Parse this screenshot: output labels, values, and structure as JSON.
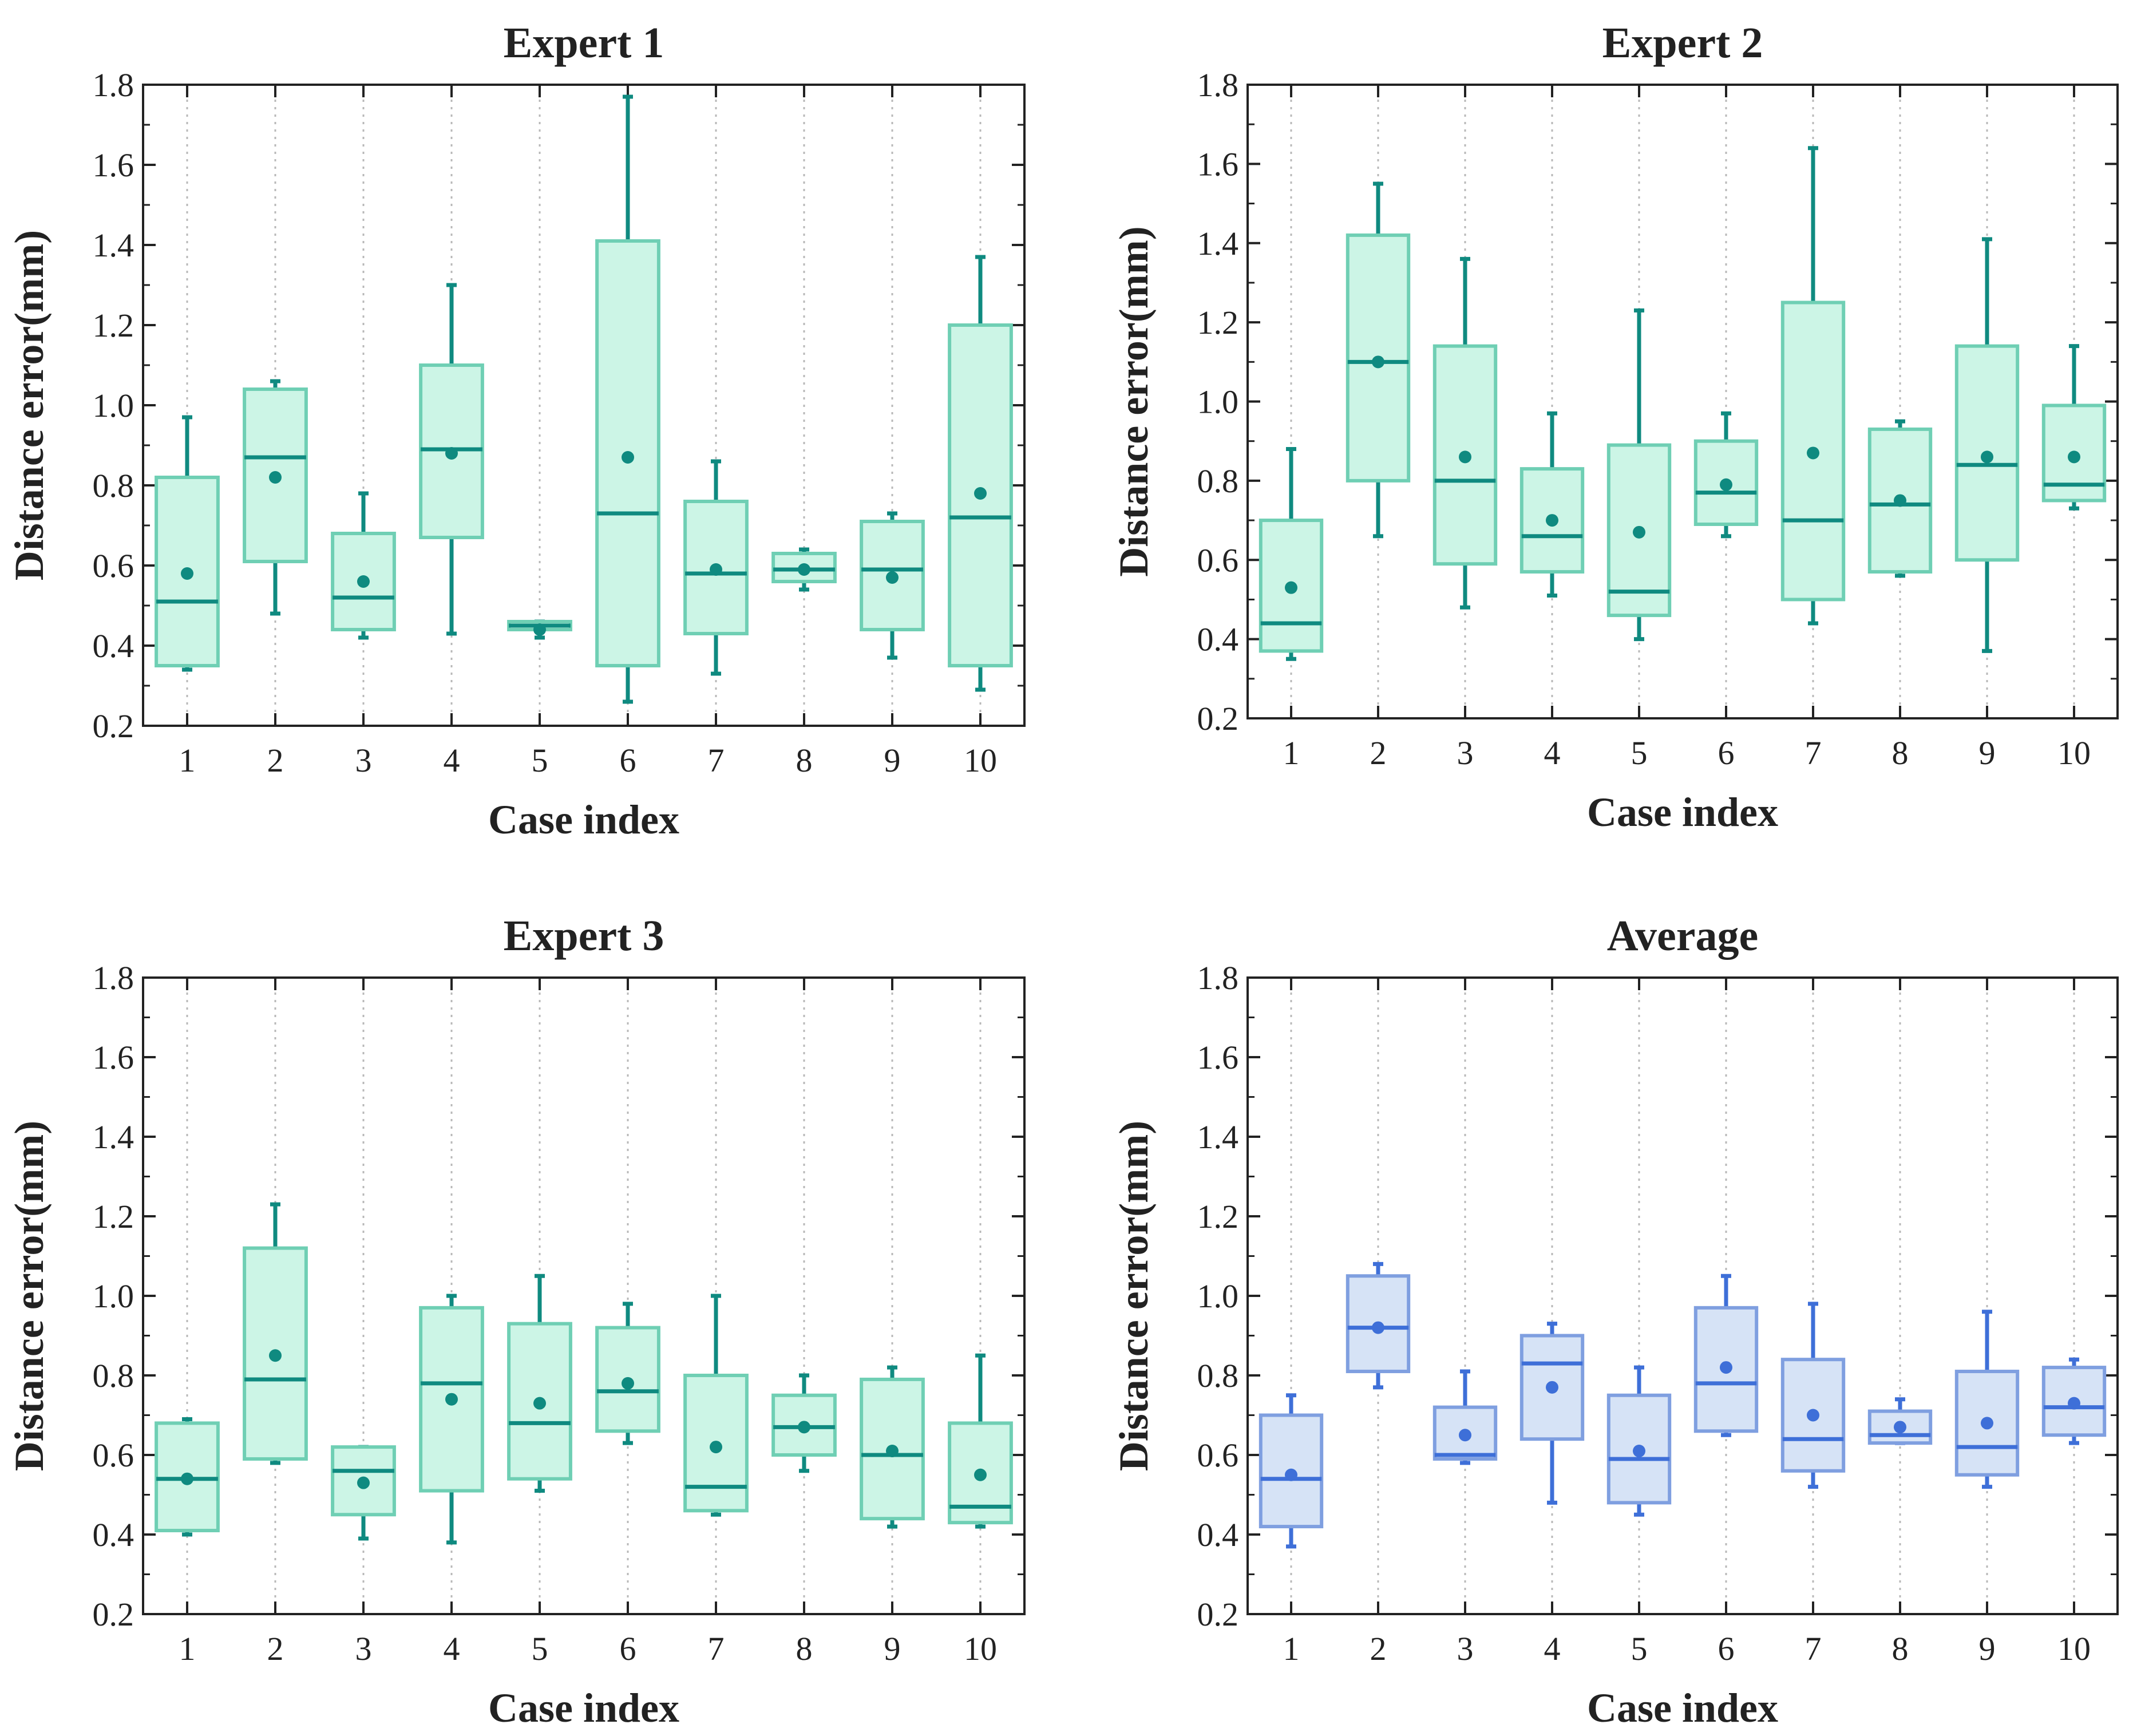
{
  "colors": {
    "teal_stroke": "#0f8a80",
    "teal_fill": "#ccf5e6",
    "teal_box_edge": "#6fcfb4",
    "blue_stroke": "#3e6fd8",
    "blue_fill": "#d6e3f6",
    "blue_box_edge": "#7f9fe0",
    "grid": "#b8b8b8",
    "axis": "#222222"
  },
  "chart_data": [
    {
      "type": "box",
      "title": "Expert 1",
      "xlabel": "Case index",
      "ylabel": "Distance error(mm)",
      "ylim": [
        0.2,
        1.8
      ],
      "yticks": [
        "0.2",
        "0.4",
        "0.6",
        "0.8",
        "1.0",
        "1.2",
        "1.4",
        "1.6",
        "1.8"
      ],
      "categories": [
        "1",
        "2",
        "3",
        "4",
        "5",
        "6",
        "7",
        "8",
        "9",
        "10"
      ],
      "grid": "vertical dotted",
      "palette": "teal",
      "boxes": [
        {
          "case": "1",
          "min": 0.34,
          "q1": 0.35,
          "median": 0.51,
          "mean": 0.58,
          "q3": 0.82,
          "max": 0.97
        },
        {
          "case": "2",
          "min": 0.48,
          "q1": 0.61,
          "median": 0.87,
          "mean": 0.82,
          "q3": 1.04,
          "max": 1.06
        },
        {
          "case": "3",
          "min": 0.42,
          "q1": 0.44,
          "median": 0.52,
          "mean": 0.56,
          "q3": 0.68,
          "max": 0.78
        },
        {
          "case": "4",
          "min": 0.43,
          "q1": 0.67,
          "median": 0.89,
          "mean": 0.88,
          "q3": 1.1,
          "max": 1.3
        },
        {
          "case": "5",
          "min": 0.42,
          "q1": 0.44,
          "median": 0.45,
          "mean": 0.44,
          "q3": 0.46,
          "max": 0.46
        },
        {
          "case": "6",
          "min": 0.26,
          "q1": 0.35,
          "median": 0.73,
          "mean": 0.87,
          "q3": 1.41,
          "max": 1.77
        },
        {
          "case": "7",
          "min": 0.33,
          "q1": 0.43,
          "median": 0.58,
          "mean": 0.59,
          "q3": 0.76,
          "max": 0.86
        },
        {
          "case": "8",
          "min": 0.54,
          "q1": 0.56,
          "median": 0.59,
          "mean": 0.59,
          "q3": 0.63,
          "max": 0.64
        },
        {
          "case": "9",
          "min": 0.37,
          "q1": 0.44,
          "median": 0.59,
          "mean": 0.57,
          "q3": 0.71,
          "max": 0.73
        },
        {
          "case": "10",
          "min": 0.29,
          "q1": 0.35,
          "median": 0.72,
          "mean": 0.78,
          "q3": 1.2,
          "max": 1.37
        }
      ]
    },
    {
      "type": "box",
      "title": "Expert 2",
      "xlabel": "Case index",
      "ylabel": "Distance error(mm)",
      "ylim": [
        0.2,
        1.8
      ],
      "yticks": [
        "0.2",
        "0.4",
        "0.6",
        "0.8",
        "1.0",
        "1.2",
        "1.4",
        "1.6",
        "1.8"
      ],
      "categories": [
        "1",
        "2",
        "3",
        "4",
        "5",
        "6",
        "7",
        "8",
        "9",
        "10"
      ],
      "grid": "vertical dotted",
      "palette": "teal",
      "boxes": [
        {
          "case": "1",
          "min": 0.35,
          "q1": 0.37,
          "median": 0.44,
          "mean": 0.53,
          "q3": 0.7,
          "max": 0.88
        },
        {
          "case": "2",
          "min": 0.66,
          "q1": 0.8,
          "median": 1.1,
          "mean": 1.1,
          "q3": 1.42,
          "max": 1.55
        },
        {
          "case": "3",
          "min": 0.48,
          "q1": 0.59,
          "median": 0.8,
          "mean": 0.86,
          "q3": 1.14,
          "max": 1.36
        },
        {
          "case": "4",
          "min": 0.51,
          "q1": 0.57,
          "median": 0.66,
          "mean": 0.7,
          "q3": 0.83,
          "max": 0.97
        },
        {
          "case": "5",
          "min": 0.4,
          "q1": 0.46,
          "median": 0.52,
          "mean": 0.67,
          "q3": 0.89,
          "max": 1.23
        },
        {
          "case": "6",
          "min": 0.66,
          "q1": 0.69,
          "median": 0.77,
          "mean": 0.79,
          "q3": 0.9,
          "max": 0.97
        },
        {
          "case": "7",
          "min": 0.44,
          "q1": 0.5,
          "median": 0.7,
          "mean": 0.87,
          "q3": 1.25,
          "max": 1.64
        },
        {
          "case": "8",
          "min": 0.56,
          "q1": 0.57,
          "median": 0.74,
          "mean": 0.75,
          "q3": 0.93,
          "max": 0.95
        },
        {
          "case": "9",
          "min": 0.37,
          "q1": 0.6,
          "median": 0.84,
          "mean": 0.86,
          "q3": 1.14,
          "max": 1.41
        },
        {
          "case": "10",
          "min": 0.73,
          "q1": 0.75,
          "median": 0.79,
          "mean": 0.86,
          "q3": 0.99,
          "max": 1.14
        }
      ]
    },
    {
      "type": "box",
      "title": "Expert 3",
      "xlabel": "Case index",
      "ylabel": "Distance error(mm)",
      "ylim": [
        0.2,
        1.8
      ],
      "yticks": [
        "0.2",
        "0.4",
        "0.6",
        "0.8",
        "1.0",
        "1.2",
        "1.4",
        "1.6",
        "1.8"
      ],
      "categories": [
        "1",
        "2",
        "3",
        "4",
        "5",
        "6",
        "7",
        "8",
        "9",
        "10"
      ],
      "grid": "vertical dotted",
      "palette": "teal",
      "boxes": [
        {
          "case": "1",
          "min": 0.4,
          "q1": 0.41,
          "median": 0.54,
          "mean": 0.54,
          "q3": 0.68,
          "max": 0.69
        },
        {
          "case": "2",
          "min": 0.58,
          "q1": 0.59,
          "median": 0.79,
          "mean": 0.85,
          "q3": 1.12,
          "max": 1.23
        },
        {
          "case": "3",
          "min": 0.39,
          "q1": 0.45,
          "median": 0.56,
          "mean": 0.53,
          "q3": 0.62,
          "max": 0.62
        },
        {
          "case": "4",
          "min": 0.38,
          "q1": 0.51,
          "median": 0.78,
          "mean": 0.74,
          "q3": 0.97,
          "max": 1.0
        },
        {
          "case": "5",
          "min": 0.51,
          "q1": 0.54,
          "median": 0.68,
          "mean": 0.73,
          "q3": 0.93,
          "max": 1.05
        },
        {
          "case": "6",
          "min": 0.63,
          "q1": 0.66,
          "median": 0.76,
          "mean": 0.78,
          "q3": 0.92,
          "max": 0.98
        },
        {
          "case": "7",
          "min": 0.45,
          "q1": 0.46,
          "median": 0.52,
          "mean": 0.62,
          "q3": 0.8,
          "max": 1.0
        },
        {
          "case": "8",
          "min": 0.56,
          "q1": 0.6,
          "median": 0.67,
          "mean": 0.67,
          "q3": 0.75,
          "max": 0.8
        },
        {
          "case": "9",
          "min": 0.42,
          "q1": 0.44,
          "median": 0.6,
          "mean": 0.61,
          "q3": 0.79,
          "max": 0.82
        },
        {
          "case": "10",
          "min": 0.42,
          "q1": 0.43,
          "median": 0.47,
          "mean": 0.55,
          "q3": 0.68,
          "max": 0.85
        }
      ]
    },
    {
      "type": "box",
      "title": "Average",
      "xlabel": "Case index",
      "ylabel": "Distance error(mm)",
      "ylim": [
        0.2,
        1.8
      ],
      "yticks": [
        "0.2",
        "0.4",
        "0.6",
        "0.8",
        "1.0",
        "1.2",
        "1.4",
        "1.6",
        "1.8"
      ],
      "categories": [
        "1",
        "2",
        "3",
        "4",
        "5",
        "6",
        "7",
        "8",
        "9",
        "10"
      ],
      "grid": "vertical dotted",
      "palette": "blue",
      "boxes": [
        {
          "case": "1",
          "min": 0.37,
          "q1": 0.42,
          "median": 0.54,
          "mean": 0.55,
          "q3": 0.7,
          "max": 0.75
        },
        {
          "case": "2",
          "min": 0.77,
          "q1": 0.81,
          "median": 0.92,
          "mean": 0.92,
          "q3": 1.05,
          "max": 1.08
        },
        {
          "case": "3",
          "min": 0.58,
          "q1": 0.59,
          "median": 0.6,
          "mean": 0.65,
          "q3": 0.72,
          "max": 0.81
        },
        {
          "case": "4",
          "min": 0.48,
          "q1": 0.64,
          "median": 0.83,
          "mean": 0.77,
          "q3": 0.9,
          "max": 0.93
        },
        {
          "case": "5",
          "min": 0.45,
          "q1": 0.48,
          "median": 0.59,
          "mean": 0.61,
          "q3": 0.75,
          "max": 0.82
        },
        {
          "case": "6",
          "min": 0.65,
          "q1": 0.66,
          "median": 0.78,
          "mean": 0.82,
          "q3": 0.97,
          "max": 1.05
        },
        {
          "case": "7",
          "min": 0.52,
          "q1": 0.56,
          "median": 0.64,
          "mean": 0.7,
          "q3": 0.84,
          "max": 0.98
        },
        {
          "case": "8",
          "min": 0.63,
          "q1": 0.63,
          "median": 0.65,
          "mean": 0.67,
          "q3": 0.71,
          "max": 0.74
        },
        {
          "case": "9",
          "min": 0.52,
          "q1": 0.55,
          "median": 0.62,
          "mean": 0.68,
          "q3": 0.81,
          "max": 0.96
        },
        {
          "case": "10",
          "min": 0.63,
          "q1": 0.65,
          "median": 0.72,
          "mean": 0.73,
          "q3": 0.82,
          "max": 0.84
        }
      ]
    }
  ]
}
